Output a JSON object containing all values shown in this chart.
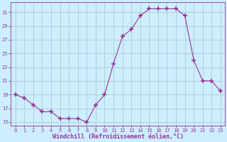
{
  "x": [
    0,
    1,
    2,
    3,
    4,
    5,
    6,
    7,
    8,
    9,
    10,
    11,
    12,
    13,
    14,
    15,
    16,
    17,
    18,
    19,
    20,
    21,
    22,
    23
  ],
  "y": [
    19.0,
    18.5,
    17.5,
    16.5,
    16.5,
    15.5,
    15.5,
    15.5,
    15.0,
    17.5,
    19.0,
    23.5,
    27.5,
    28.5,
    30.5,
    31.5,
    31.5,
    31.5,
    31.5,
    30.5,
    24.0,
    21.0,
    21.0,
    19.5
  ],
  "line_color": "#993399",
  "marker": "+",
  "marker_size": 4,
  "marker_lw": 1.2,
  "bg_color": "#cceeff",
  "grid_color": "#aacccc",
  "xlabel": "Windchill (Refroidissement éolien,°C)",
  "xlabel_color": "#993399",
  "tick_color": "#993399",
  "label_fontsize": 5.0,
  "xlabel_fontsize": 6.0,
  "ylim": [
    14.5,
    32.5
  ],
  "xlim": [
    -0.5,
    23.5
  ],
  "yticks": [
    15,
    17,
    19,
    21,
    23,
    25,
    27,
    29,
    31
  ],
  "xticks": [
    0,
    1,
    2,
    3,
    4,
    5,
    6,
    7,
    8,
    9,
    10,
    11,
    12,
    13,
    14,
    15,
    16,
    17,
    18,
    19,
    20,
    21,
    22,
    23
  ]
}
